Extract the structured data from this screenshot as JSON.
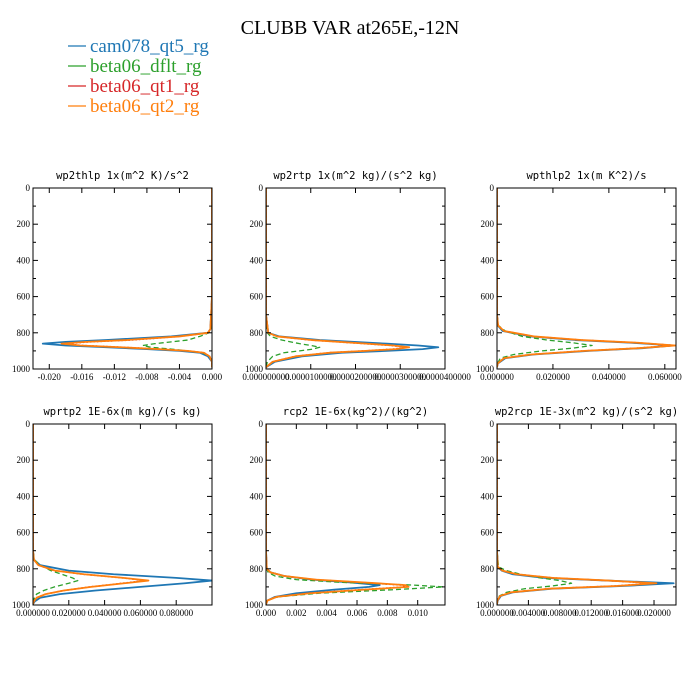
{
  "figure_title": "CLUBB VAR at265E,-12N",
  "legend": [
    {
      "label": "cam078_qt5_rg",
      "color": "#1f77b4",
      "dash": "solid"
    },
    {
      "label": "beta06_dflt_rg",
      "color": "#2ca02c",
      "dash": "dashed"
    },
    {
      "label": "beta06_qt1_rg",
      "color": "#d62728",
      "dash": "dotted"
    },
    {
      "label": "beta06_qt2_rg",
      "color": "#ff7f0e",
      "dash": "solid"
    }
  ],
  "chart_data": [
    {
      "type": "line",
      "title": "wp2thlp  1x(m^2 K)/s^2",
      "xlim": [
        -0.022,
        0.0
      ],
      "xticks": [
        "-0.020",
        "-0.016",
        "-0.012",
        "-0.008",
        "-0.004",
        "0.000"
      ],
      "xtick_values": [
        -0.02,
        -0.016,
        -0.012,
        -0.008,
        -0.004,
        0.0
      ],
      "ylim": [
        1000,
        0
      ],
      "yticks": [
        "0",
        "200",
        "400",
        "600",
        "800",
        "1000"
      ],
      "y": [
        0,
        600,
        780,
        800,
        820,
        840,
        850,
        860,
        870,
        880,
        890,
        900,
        910,
        930,
        960,
        990
      ],
      "series": [
        {
          "name": "cam078_qt5_rg",
          "x": [
            0,
            0,
            -0.0002,
            -0.0005,
            -0.005,
            -0.013,
            -0.018,
            -0.0208,
            -0.018,
            -0.013,
            -0.008,
            -0.004,
            -0.0015,
            -0.0005,
            0,
            0
          ]
        },
        {
          "name": "beta06_dflt_rg",
          "x": [
            0,
            0,
            -0.0001,
            -0.0004,
            -0.0015,
            -0.003,
            -0.005,
            -0.007,
            -0.0085,
            -0.0075,
            -0.005,
            -0.003,
            -0.0012,
            -0.0003,
            0,
            0
          ]
        },
        {
          "name": "beta06_qt1_rg",
          "x": [
            0,
            0,
            -0.0002,
            -0.0005,
            -0.004,
            -0.01,
            -0.015,
            -0.0182,
            -0.016,
            -0.011,
            -0.0065,
            -0.003,
            -0.001,
            -0.0003,
            0,
            0
          ]
        },
        {
          "name": "beta06_qt2_rg",
          "x": [
            0,
            0,
            -0.0002,
            -0.0005,
            -0.004,
            -0.0105,
            -0.0155,
            -0.0185,
            -0.0162,
            -0.0112,
            -0.0066,
            -0.003,
            -0.001,
            -0.0003,
            0,
            0
          ]
        }
      ]
    },
    {
      "type": "line",
      "title": "wp2rtp  1x(m^2 kg)/(s^2 kg)",
      "xlim": [
        0,
        4e-05
      ],
      "xticks": [
        "0.000000000",
        "0.0000100000",
        "0.0000200000",
        "0.0000300000",
        "0.0000400000"
      ],
      "xtick_values": [
        0,
        1e-05,
        2e-05,
        3e-05,
        4e-05
      ],
      "ylim": [
        1000,
        0
      ],
      "yticks": [
        "0",
        "200",
        "400",
        "600",
        "800",
        "1000"
      ],
      "y": [
        0,
        700,
        800,
        820,
        840,
        860,
        870,
        880,
        890,
        900,
        910,
        930,
        960,
        990
      ],
      "series": [
        {
          "name": "cam078_qt5_rg",
          "x": [
            0,
            0,
            5e-07,
            3e-06,
            1.2e-05,
            2.7e-05,
            3.4e-05,
            3.85e-05,
            3.5e-05,
            2.7e-05,
            1.7e-05,
            8e-06,
            2e-06,
            0
          ]
        },
        {
          "name": "beta06_dflt_rg",
          "x": [
            0,
            0,
            3e-07,
            1e-06,
            3.5e-06,
            7.5e-06,
            1e-05,
            1.2e-05,
            1.05e-05,
            7.5e-06,
            4e-06,
            1.5e-06,
            3e-07,
            0
          ]
        },
        {
          "name": "beta06_qt1_rg",
          "x": [
            0,
            0,
            5e-07,
            2.5e-06,
            1e-05,
            2.2e-05,
            2.8e-05,
            3.15e-05,
            2.85e-05,
            2.2e-05,
            1.4e-05,
            6.5e-06,
            1.5e-06,
            0
          ]
        },
        {
          "name": "beta06_qt2_rg",
          "x": [
            0,
            0,
            5e-07,
            2.5e-06,
            1.02e-05,
            2.24e-05,
            2.85e-05,
            3.2e-05,
            2.9e-05,
            2.22e-05,
            1.42e-05,
            6.6e-06,
            1.5e-06,
            0
          ]
        }
      ]
    },
    {
      "type": "line",
      "title": "wpthlp2  1x(m K^2)/s",
      "xlim": [
        0,
        0.064
      ],
      "xticks": [
        "0.000000",
        "0.020000",
        "0.040000",
        "0.060000"
      ],
      "xtick_values": [
        0,
        0.02,
        0.04,
        0.06
      ],
      "ylim": [
        1000,
        0
      ],
      "yticks": [
        "0",
        "200",
        "400",
        "600",
        "800",
        "1000"
      ],
      "y": [
        0,
        700,
        760,
        790,
        820,
        840,
        855,
        870,
        885,
        900,
        920,
        940,
        970,
        990
      ],
      "series": [
        {
          "name": "cam078_qt5_rg",
          "x": [
            0,
            0,
            0.0003,
            0.002,
            0.012,
            0.028,
            0.048,
            0.063,
            0.052,
            0.033,
            0.013,
            0.003,
            0.0003,
            0
          ]
        },
        {
          "name": "beta06_dflt_rg",
          "x": [
            0,
            0,
            0.0005,
            0.003,
            0.009,
            0.018,
            0.027,
            0.034,
            0.027,
            0.016,
            0.006,
            0.0012,
            0.0001,
            0
          ]
        },
        {
          "name": "beta06_qt1_rg",
          "x": [
            0,
            0,
            0.0004,
            0.0025,
            0.013,
            0.03,
            0.05,
            0.0635,
            0.05,
            0.031,
            0.012,
            0.0025,
            0.0002,
            0
          ]
        },
        {
          "name": "beta06_qt2_rg",
          "x": [
            0,
            0,
            0.0004,
            0.0025,
            0.0132,
            0.0302,
            0.0505,
            0.0638,
            0.0505,
            0.0312,
            0.0122,
            0.0025,
            0.0002,
            0
          ]
        }
      ]
    },
    {
      "type": "line",
      "title": "wprtp2  1E-6x(m kg)/(s kg)",
      "xlim": [
        0,
        0.1
      ],
      "xticks": [
        "0.000000",
        "0.020000",
        "0.040000",
        "0.060000",
        "0.080000"
      ],
      "xtick_values": [
        0,
        0.02,
        0.04,
        0.06,
        0.08
      ],
      "ylim": [
        1000,
        0
      ],
      "yticks": [
        "0",
        "200",
        "400",
        "600",
        "800",
        "1000"
      ],
      "y": [
        0,
        700,
        750,
        780,
        810,
        830,
        850,
        865,
        880,
        900,
        920,
        940,
        960,
        980,
        995
      ],
      "series": [
        {
          "name": "cam078_qt5_rg",
          "x": [
            0,
            0,
            0.0005,
            0.004,
            0.02,
            0.045,
            0.08,
            0.1,
            0.085,
            0.06,
            0.035,
            0.015,
            0.004,
            0.001,
            0
          ]
        },
        {
          "name": "beta06_dflt_rg",
          "x": [
            0,
            0,
            0.0008,
            0.004,
            0.01,
            0.016,
            0.022,
            0.025,
            0.02,
            0.012,
            0.006,
            0.002,
            0.0008,
            0.0002,
            0
          ]
        },
        {
          "name": "beta06_qt1_rg",
          "x": [
            0,
            0,
            0.0005,
            0.003,
            0.012,
            0.028,
            0.05,
            0.063,
            0.05,
            0.032,
            0.017,
            0.007,
            0.002,
            0.0005,
            0
          ]
        },
        {
          "name": "beta06_qt2_rg",
          "x": [
            0,
            0,
            0.0005,
            0.003,
            0.0123,
            0.0285,
            0.0505,
            0.0645,
            0.051,
            0.0325,
            0.0172,
            0.0071,
            0.002,
            0.0005,
            0
          ]
        }
      ]
    },
    {
      "type": "line",
      "title": "rcp2  1E-6x(kg^2)/(kg^2)",
      "xlim": [
        0,
        0.0118
      ],
      "xticks": [
        "0.000",
        "0.002",
        "0.004",
        "0.006",
        "0.008",
        "0.010"
      ],
      "xtick_values": [
        0,
        0.002,
        0.004,
        0.006,
        0.008,
        0.01
      ],
      "ylim": [
        1000,
        0
      ],
      "yticks": [
        "0",
        "200",
        "400",
        "600",
        "800",
        "1000"
      ],
      "y": [
        0,
        700,
        800,
        820,
        840,
        860,
        875,
        890,
        900,
        915,
        935,
        955,
        975,
        995
      ],
      "series": [
        {
          "name": "cam078_qt5_rg",
          "x": [
            0,
            0,
            5e-05,
            0.0003,
            0.0012,
            0.003,
            0.0055,
            0.0075,
            0.0068,
            0.0045,
            0.002,
            0.0006,
            0.0001,
            0
          ]
        },
        {
          "name": "beta06_dflt_rg",
          "x": [
            0,
            0,
            3e-05,
            0.00015,
            0.0006,
            0.002,
            0.005,
            0.0097,
            0.0117,
            0.0085,
            0.0035,
            0.0008,
            0.0001,
            0
          ]
        },
        {
          "name": "beta06_qt1_rg",
          "x": [
            0,
            0,
            5e-05,
            0.0003,
            0.0012,
            0.0032,
            0.0062,
            0.009,
            0.0092,
            0.0064,
            0.0028,
            0.0007,
            0.0001,
            0
          ]
        },
        {
          "name": "beta06_qt2_rg",
          "x": [
            0,
            0,
            5e-05,
            0.0003,
            0.0012,
            0.0033,
            0.0064,
            0.0092,
            0.0094,
            0.0065,
            0.0029,
            0.0007,
            0.0001,
            0
          ]
        }
      ]
    },
    {
      "type": "line",
      "title": "wp2rcp  1E-3x(m^2 kg)/(s^2 kg)",
      "xlim": [
        0,
        0.0228
      ],
      "xticks": [
        "0.000000",
        "0.004000",
        "0.008000",
        "0.012000",
        "0.016000",
        "0.020000"
      ],
      "xtick_values": [
        0,
        0.004,
        0.008,
        0.012,
        0.016,
        0.02
      ],
      "ylim": [
        1000,
        0
      ],
      "yticks": [
        "0",
        "200",
        "400",
        "600",
        "800",
        "1000"
      ],
      "y": [
        0,
        700,
        790,
        810,
        830,
        850,
        865,
        880,
        895,
        910,
        930,
        950,
        975,
        995
      ],
      "series": [
        {
          "name": "cam078_qt5_rg",
          "x": [
            0,
            0,
            0.0001,
            0.0006,
            0.002,
            0.006,
            0.014,
            0.0225,
            0.016,
            0.007,
            0.002,
            0.0005,
            0.0001,
            0
          ]
        },
        {
          "name": "beta06_dflt_rg",
          "x": [
            0,
            0,
            0.0002,
            0.0012,
            0.003,
            0.0055,
            0.008,
            0.0095,
            0.007,
            0.0035,
            0.0012,
            0.0003,
            5e-05,
            0
          ]
        },
        {
          "name": "beta06_qt1_rg",
          "x": [
            0,
            0,
            0.0001,
            0.0007,
            0.0025,
            0.007,
            0.014,
            0.02,
            0.015,
            0.0065,
            0.0018,
            0.0004,
            5e-05,
            0
          ]
        },
        {
          "name": "beta06_qt2_rg",
          "x": [
            0,
            0,
            0.0001,
            0.0007,
            0.0025,
            0.0071,
            0.0142,
            0.0203,
            0.0152,
            0.0066,
            0.0018,
            0.0004,
            5e-05,
            0
          ]
        }
      ]
    }
  ]
}
